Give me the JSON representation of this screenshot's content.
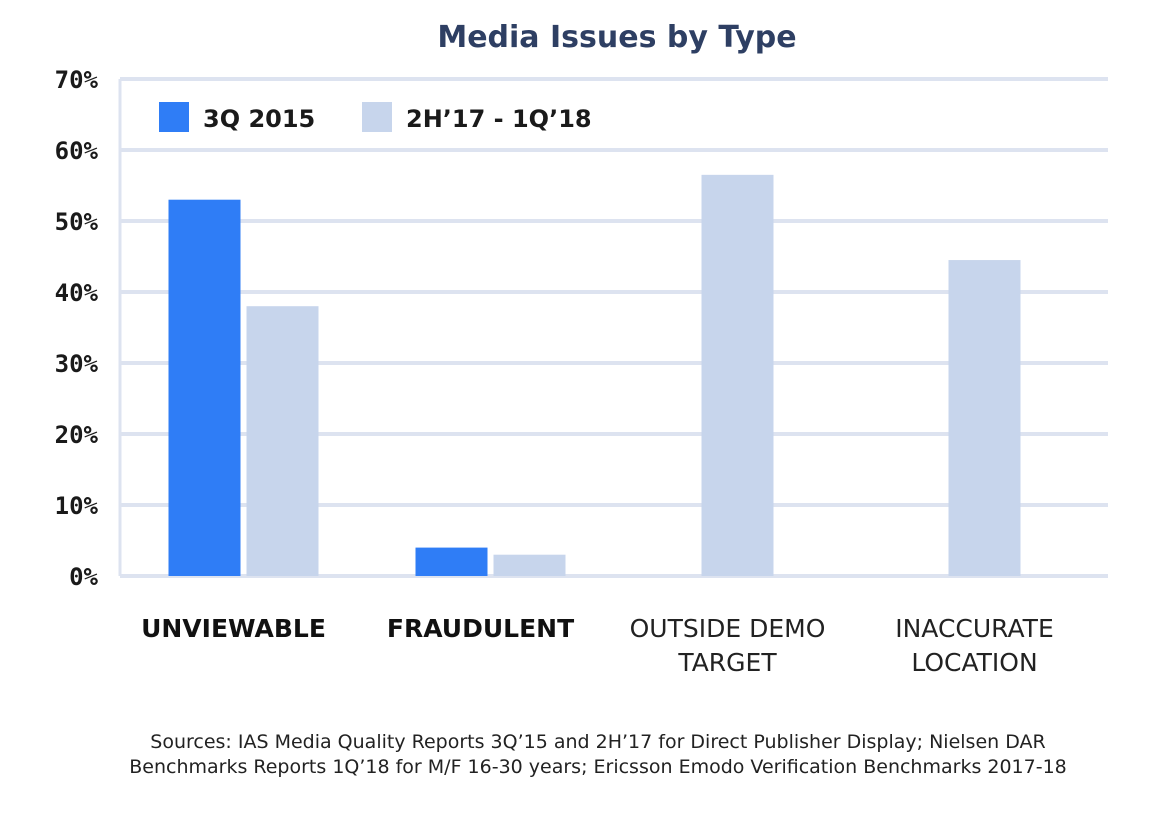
{
  "chart_data": {
    "type": "bar",
    "title": "Media Issues by Type",
    "categories": [
      {
        "lines": [
          "UNVIEWABLE"
        ],
        "bold": true
      },
      {
        "lines": [
          "FRAUDULENT"
        ],
        "bold": true
      },
      {
        "lines": [
          "OUTSIDE DEMO",
          "TARGET"
        ],
        "bold": false
      },
      {
        "lines": [
          "INACCURATE",
          "LOCATION"
        ],
        "bold": false
      }
    ],
    "series": [
      {
        "name": "3Q 2015",
        "color": "#2f7df6",
        "values": [
          53,
          4,
          null,
          null
        ]
      },
      {
        "name": "2H’17 - 1Q’18",
        "color": "#c7d5ec",
        "values": [
          38,
          3,
          56.5,
          44.5
        ]
      }
    ],
    "ylim": [
      0,
      70
    ],
    "yticks": [
      "0%",
      "10%",
      "20%",
      "30%",
      "40%",
      "50%",
      "60%",
      "70%"
    ],
    "grid": true,
    "gridColor": "#dde3f0",
    "legend": "top-left",
    "xlabel": "",
    "ylabel": ""
  },
  "footnote": [
    "Sources: IAS Media Quality Reports 3Q’15 and 2H’17 for Direct Publisher Display; Nielsen DAR",
    "Benchmarks Reports 1Q’18 for M/F 16-30 years; Ericsson Emodo Verification Benchmarks 2017-18"
  ]
}
